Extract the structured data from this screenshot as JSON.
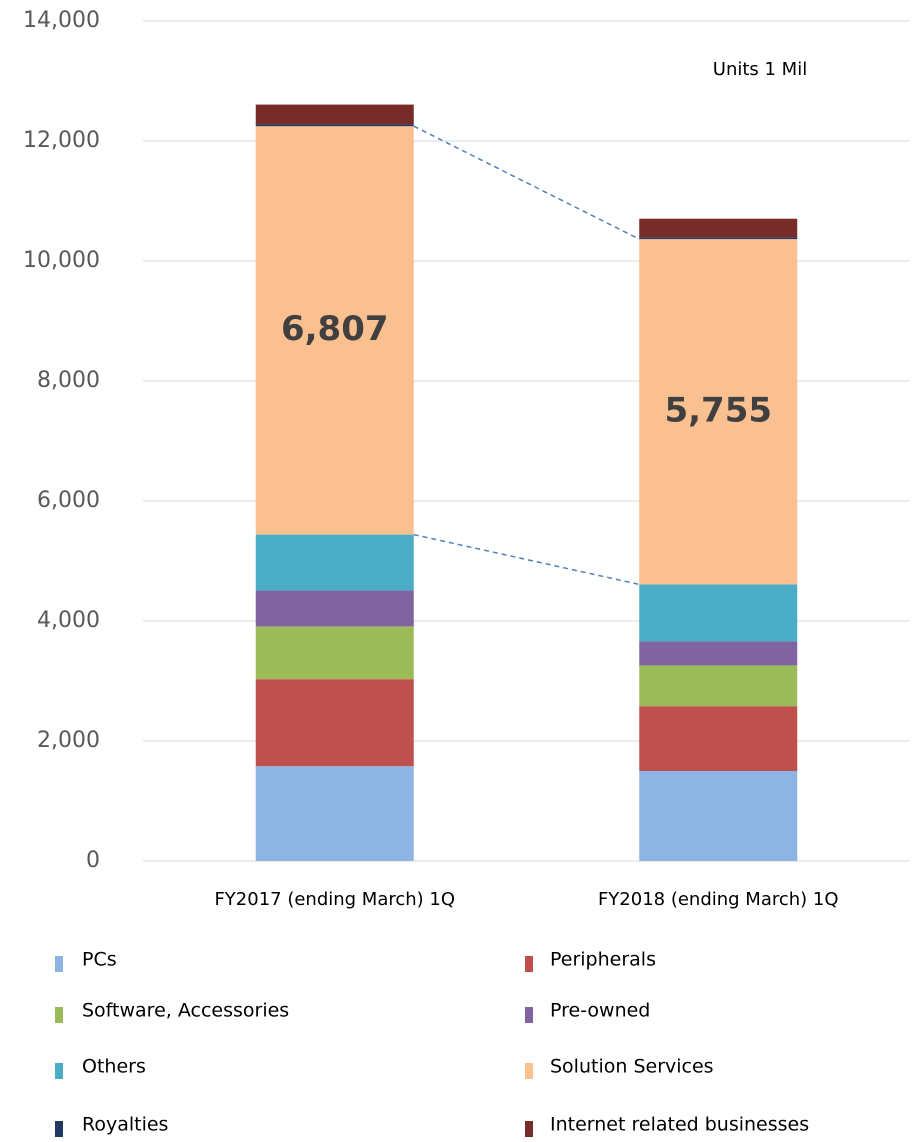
{
  "chart_data": {
    "type": "stacked_bar",
    "annotations": [
      "Units 1 Mil"
    ],
    "categories": [
      "FY2017 (ending March) 1Q",
      "FY2018 (ending March) 1Q"
    ],
    "series": [
      {
        "name": "PCs",
        "color": "#8eb4e3",
        "values": [
          1580,
          1500
        ]
      },
      {
        "name": "Peripherals",
        "color": "#c0504d",
        "values": [
          1450,
          1080
        ]
      },
      {
        "name": "Software, Accessories",
        "color": "#9bbb59",
        "values": [
          880,
          680
        ]
      },
      {
        "name": "Pre-owned",
        "color": "#8064a2",
        "values": [
          600,
          400
        ]
      },
      {
        "name": "Others",
        "color": "#4bacc6",
        "values": [
          930,
          950
        ]
      },
      {
        "name": "Solution Services",
        "color": "#fac090",
        "values": [
          6807,
          5755
        ],
        "value_labels": [
          "6,807",
          "5,755"
        ]
      },
      {
        "name": "Royalties",
        "color": "#1f3864",
        "values": [
          30,
          30
        ]
      },
      {
        "name": "Internet related businesses",
        "color": "#772c2a",
        "values": [
          330,
          310
        ]
      }
    ],
    "ylim": [
      0,
      14000
    ],
    "yticks": [
      0,
      {
        "value": 2000,
        "label": "2,000"
      },
      {
        "value": 4000,
        "label": "4,000"
      },
      {
        "value": 6000,
        "label": "6,000"
      },
      {
        "value": 8000,
        "label": "8,000"
      },
      {
        "value": 10000,
        "label": "10,000"
      },
      {
        "value": 12000,
        "label": "12,000"
      },
      {
        "value": 14000,
        "label": "14,000"
      }
    ],
    "grid": true
  }
}
